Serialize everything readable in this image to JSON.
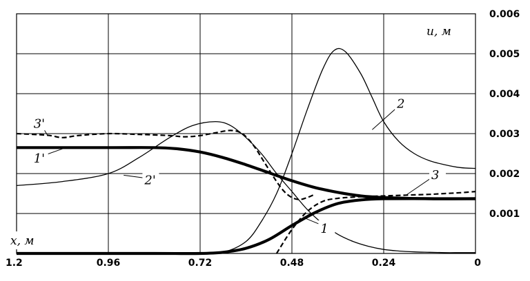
{
  "chart_data": {
    "type": "line",
    "xlabel": "x, м",
    "ylabel": "u, м",
    "xlim": [
      1.2,
      0
    ],
    "ylim": [
      0,
      0.006
    ],
    "x_reversed": true,
    "grid": true,
    "x_ticks": [
      "1.2",
      "0.96",
      "0.72",
      "0.48",
      "0.24",
      "0"
    ],
    "y_ticks": [
      "0.001",
      "0.002",
      "0.003",
      "0.004",
      "0.005",
      "0.006"
    ],
    "series": [
      {
        "name": "1",
        "style": "thick",
        "x": [
          1.2,
          0.84,
          0.72,
          0.66,
          0.6,
          0.54,
          0.48,
          0.42,
          0.36,
          0.3,
          0.24,
          0.12,
          0
        ],
        "y": [
          0,
          0,
          0,
          3e-05,
          0.00013,
          0.00035,
          0.0007,
          0.00102,
          0.00125,
          0.00134,
          0.00137,
          0.00137,
          0.00137
        ]
      },
      {
        "name": "1'",
        "style": "thick",
        "x": [
          1.2,
          0.96,
          0.84,
          0.78,
          0.72,
          0.66,
          0.6,
          0.54,
          0.48,
          0.42,
          0.36,
          0.3,
          0.24,
          0.12,
          0
        ],
        "y": [
          0.00265,
          0.00265,
          0.00265,
          0.00262,
          0.00254,
          0.0024,
          0.00222,
          0.00202,
          0.00182,
          0.00165,
          0.00153,
          0.00144,
          0.0014,
          0.00137,
          0.00137
        ]
      },
      {
        "name": "2",
        "style": "thin",
        "x": [
          1.2,
          0.84,
          0.72,
          0.66,
          0.6,
          0.56,
          0.52,
          0.48,
          0.44,
          0.4,
          0.37,
          0.34,
          0.3,
          0.27,
          0.24,
          0.2,
          0.16,
          0.12,
          0.08,
          0.04,
          0
        ],
        "y": [
          0,
          0,
          0,
          3e-05,
          0.0003,
          0.0008,
          0.0015,
          0.0025,
          0.0036,
          0.0046,
          0.00508,
          0.00505,
          0.0045,
          0.0039,
          0.0033,
          0.0028,
          0.0025,
          0.00232,
          0.00222,
          0.00215,
          0.00213
        ]
      },
      {
        "name": "2'",
        "style": "thin",
        "x": [
          1.2,
          1.08,
          0.96,
          0.88,
          0.8,
          0.74,
          0.68,
          0.64,
          0.6,
          0.56,
          0.52,
          0.48,
          0.44,
          0.4,
          0.36,
          0.32,
          0.28,
          0.24,
          0.2,
          0.16,
          0.12,
          0.08,
          0.04,
          0
        ],
        "y": [
          0.0017,
          0.0018,
          0.002,
          0.0024,
          0.0029,
          0.0032,
          0.0033,
          0.0032,
          0.0029,
          0.0025,
          0.002,
          0.00155,
          0.0011,
          0.00075,
          0.00048,
          0.0003,
          0.00018,
          0.0001,
          6e-05,
          4e-05,
          3e-05,
          2e-05,
          2e-05,
          2e-05
        ]
      },
      {
        "name": "3",
        "style": "dashed",
        "x": [
          0.52,
          0.48,
          0.44,
          0.4,
          0.36,
          0.3,
          0.24,
          0.18,
          0.12,
          0.08,
          0.04,
          0
        ],
        "y": [
          0,
          0.0006,
          0.00105,
          0.0013,
          0.00138,
          0.00142,
          0.00144,
          0.00146,
          0.00148,
          0.0015,
          0.00152,
          0.00155
        ]
      },
      {
        "name": "3'",
        "style": "dashed",
        "x": [
          1.2,
          1.12,
          1.08,
          1.04,
          0.96,
          0.88,
          0.8,
          0.76,
          0.72,
          0.68,
          0.64,
          0.61,
          0.58,
          0.55,
          0.52,
          0.5,
          0.48,
          0.46,
          0.44,
          0.42
        ],
        "y": [
          0.003,
          0.00296,
          0.0029,
          0.00295,
          0.003,
          0.00298,
          0.00295,
          0.00292,
          0.00295,
          0.00302,
          0.00308,
          0.003,
          0.0027,
          0.00225,
          0.0018,
          0.00155,
          0.0014,
          0.00135,
          0.0014,
          0.00148
        ]
      }
    ],
    "curve_labels": [
      {
        "text": "1",
        "x": 0.4,
        "y": 0.00052
      },
      {
        "text": "1'",
        "x": 1.15,
        "y": 0.00228
      },
      {
        "text": "2",
        "x": 0.2,
        "y": 0.00365
      },
      {
        "text": "2'",
        "x": 0.86,
        "y": 0.00173
      },
      {
        "text": "3",
        "x": 0.11,
        "y": 0.00186
      },
      {
        "text": "3'",
        "x": 1.15,
        "y": 0.00315
      }
    ]
  }
}
